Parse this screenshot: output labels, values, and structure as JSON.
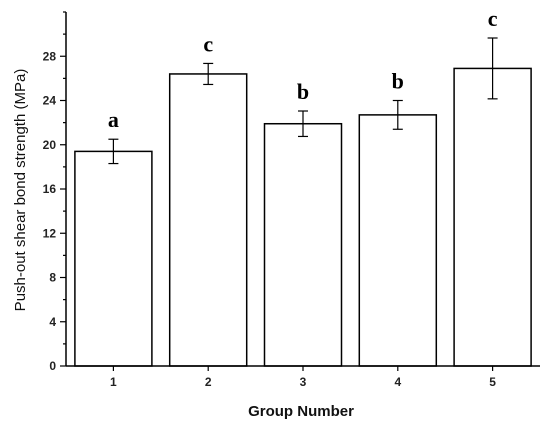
{
  "chart_data": {
    "type": "bar",
    "categories": [
      "1",
      "2",
      "3",
      "4",
      "5"
    ],
    "values": [
      19.4,
      26.4,
      21.9,
      22.7,
      26.9
    ],
    "errors": [
      1.1,
      0.95,
      1.15,
      1.3,
      2.75
    ],
    "group_letters": [
      "a",
      "c",
      "b",
      "b",
      "c"
    ],
    "xlabel": "Group Number",
    "ylabel": "Push-out shear bond strength (MPa)",
    "ylim": [
      0,
      32
    ],
    "yticks": [
      0,
      4,
      8,
      12,
      16,
      20,
      24,
      28
    ],
    "grid": false,
    "legend": "none"
  }
}
